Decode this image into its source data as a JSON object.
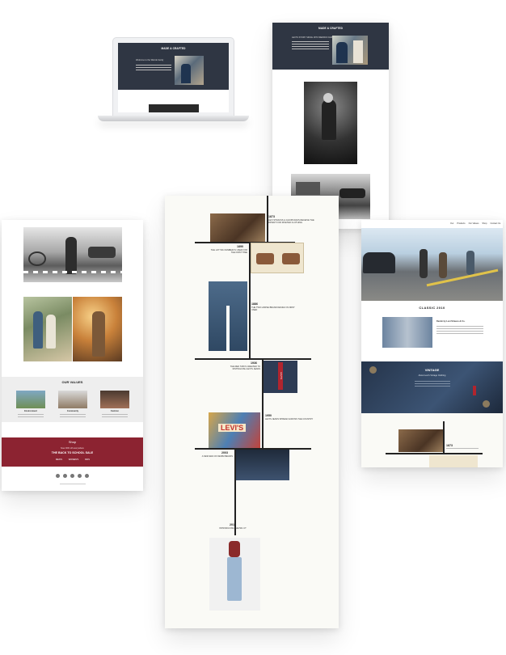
{
  "laptop": {
    "heading": "MADE & CRAFTED",
    "subheading": "Welcome to the Weirdo family"
  },
  "phone": {
    "heading": "MADE & CRAFTED",
    "subheading": "LEVI'S STORY SINCE 1873 WEIRDO FAMILY"
  },
  "left_page": {
    "values_heading": "OUR VALUES",
    "values": [
      {
        "label": "Environment"
      },
      {
        "label": "Community"
      },
      {
        "label": "Fashion"
      }
    ],
    "shop_label": "Shop",
    "promo_small": "Now 30% off everywhere",
    "promo_title": "THE BACK TO SCHOOL SALE",
    "promo_links": [
      "MEN'S",
      "WOMEN'S",
      "KIDS"
    ]
  },
  "timeline": {
    "events": [
      {
        "year": "1873",
        "text": "LEVI STRAUSS & JACOB DAVIS RECEIVE THE PATENT FOR RIVETED CLOTHING"
      },
      {
        "year": "1890",
        "text": "THE LOT 501 NUMBER IS USED FOR THE FIRST TIME"
      },
      {
        "year": "1886",
        "text": "THE TWO HORSE BRAND DESIGN IS FIRST USED"
      },
      {
        "year": "1936",
        "text": "THE RED TAB IS CREATED TO DISTINGUISH LEVI'S JEANS"
      },
      {
        "year": "1950",
        "text": "LEVI'S JEANS SPREAD ACROSS THE COUNTRY"
      },
      {
        "year": "2003",
        "text": "A NEW ERA OF DENIM BEGINS"
      },
      {
        "year": "2015",
        "text": "INTRODUCING THE 501 CT"
      }
    ],
    "red_tab_text": "LEVI'S",
    "poster_text": "LEVI'S"
  },
  "right_page": {
    "nav": [
      "Our",
      "Products",
      "Our Values",
      "Shop",
      "Contact Us"
    ],
    "section_classic": "CLASSIC 2010",
    "feature_title": "Denim by Levi Strauss & Co.",
    "vintage_heading": "VINTAGE",
    "vintage_sub": "About Levi's Vintage Clothing",
    "year": "1873"
  },
  "colors": {
    "navy": "#2f3643",
    "maroon": "#8c2331",
    "timeline_bg": "#fafaf6",
    "denim": "#3b5a7a"
  }
}
